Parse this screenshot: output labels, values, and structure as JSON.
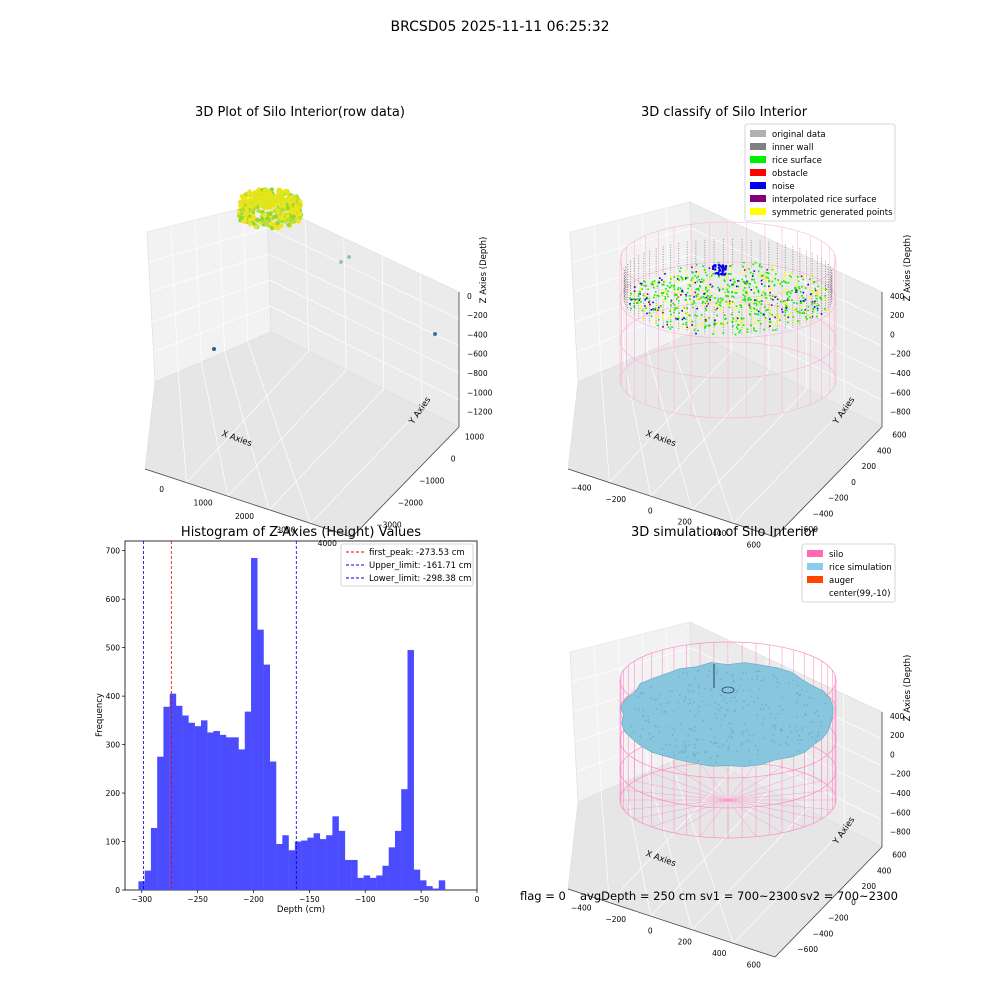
{
  "figure_title": "BRCSD05 2025-11-11 06:25:32",
  "footer": {
    "flag": "flag = 0",
    "avg_depth": "avgDepth = 250 cm",
    "sv1": "sv1 = 700~2300",
    "sv2": "sv2 = 700~2300"
  },
  "chart_data": [
    {
      "type": "scatter",
      "title": "3D Plot of Silo Interior(row data)",
      "xlabel": "X Axies",
      "ylabel": "Y Axies",
      "zlabel": "Z Axies (Depth)",
      "x_ticks": [
        "0",
        "1000",
        "2000",
        "3000",
        "4000"
      ],
      "y_ticks": [
        "1000",
        "0",
        "−1000",
        "−2000",
        "−3000"
      ],
      "z_ticks": [
        "0",
        "−200",
        "−400",
        "−600",
        "−800",
        "−1000",
        "−1200"
      ],
      "outliers": [
        {
          "x": 2900,
          "y": 0,
          "z": -480,
          "color": "#8fc3c3"
        },
        {
          "x": 3050,
          "y": 50,
          "z": -440,
          "color": "#8fc3c3"
        },
        {
          "x": 4000,
          "y": -2500,
          "z": -1200,
          "color": "#3f6f9c"
        },
        {
          "x": 200,
          "y": -3200,
          "z": -1100,
          "color": "#2e5d8c"
        }
      ],
      "cluster_colors": [
        "#e6e619",
        "#b8e02a",
        "#8fd63a",
        "#f2e31c"
      ]
    },
    {
      "type": "scatter",
      "title": "3D classify of Silo Interior",
      "xlabel": "X Axies",
      "ylabel": "Y Axies",
      "zlabel": "Z Axies (Depth)",
      "x_ticks": [
        "−400",
        "−200",
        "0",
        "200",
        "400",
        "600"
      ],
      "y_ticks": [
        "600",
        "400",
        "200",
        "0",
        "−200",
        "−400",
        "−600"
      ],
      "z_ticks": [
        "400",
        "200",
        "0",
        "−200",
        "−400",
        "−600",
        "−800"
      ],
      "legend": [
        {
          "label": "original data",
          "color": "#b0b0b0"
        },
        {
          "label": "inner wall",
          "color": "#808080"
        },
        {
          "label": "rice surface",
          "color": "#00ee00"
        },
        {
          "label": "obstacle",
          "color": "#ff0000"
        },
        {
          "label": "noise",
          "color": "#0000ee"
        },
        {
          "label": "interpolated rice surface",
          "color": "#800080"
        },
        {
          "label": "symmetric generated points",
          "color": "#ffff00"
        }
      ]
    },
    {
      "type": "bar",
      "title": "Histogram of Z-Axies (Height) Values",
      "xlabel": "Depth (cm)",
      "ylabel": "Frequency",
      "xlim": [
        -315,
        0
      ],
      "ylim": [
        0,
        720
      ],
      "x_ticks": [
        "−300",
        "−250",
        "−200",
        "−150",
        "−100",
        "−50",
        "0"
      ],
      "y_ticks": [
        "0",
        "100",
        "200",
        "300",
        "400",
        "500",
        "600",
        "700"
      ],
      "bin_start": -303,
      "bin_width": 5.6,
      "values": [
        18,
        40,
        128,
        275,
        378,
        405,
        380,
        360,
        345,
        338,
        350,
        325,
        328,
        320,
        315,
        315,
        290,
        368,
        685,
        537,
        465,
        265,
        95,
        113,
        82,
        100,
        102,
        108,
        117,
        105,
        113,
        152,
        122,
        62,
        62,
        25,
        30,
        25,
        30,
        50,
        88,
        122,
        208,
        495,
        42,
        20,
        8,
        3,
        20
      ],
      "bar_color": "#4c4cff",
      "vlines": [
        {
          "label": "first_peak: -273.53 cm",
          "value": -273.53,
          "color": "#ee0000"
        },
        {
          "label": "Upper_limit: -161.71 cm",
          "value": -161.71,
          "color": "#0000cc"
        },
        {
          "label": "Lower_limit: -298.38 cm",
          "value": -298.38,
          "color": "#0000cc"
        }
      ]
    },
    {
      "type": "area",
      "title": "3D simulation of Silo Interior",
      "xlabel": "X Axies",
      "ylabel": "Y Axies",
      "zlabel": "Z Axies (Depth)",
      "x_ticks": [
        "−400",
        "−200",
        "0",
        "200",
        "400",
        "600"
      ],
      "y_ticks": [
        "600",
        "400",
        "200",
        "0",
        "−200",
        "−400",
        "−600"
      ],
      "z_ticks": [
        "400",
        "200",
        "0",
        "−200",
        "−400",
        "−600",
        "−800"
      ],
      "legend": [
        {
          "label": "silo",
          "color": "#ff69b4"
        },
        {
          "label": "rice simulation",
          "color": "#87ceeb"
        },
        {
          "label": "auger",
          "color": "#ff4500"
        },
        {
          "label": "center(99,-10)",
          "color": "#ffffff"
        }
      ]
    }
  ]
}
